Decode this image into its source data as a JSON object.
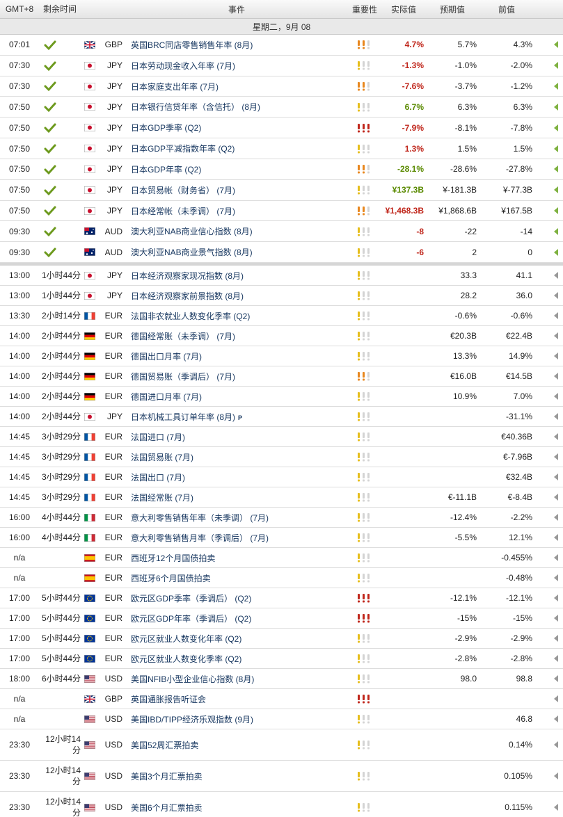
{
  "header": {
    "time": "GMT+8",
    "remaining": "剩余时间",
    "event": "事件",
    "importance": "重要性",
    "actual": "实际值",
    "forecast": "预期值",
    "previous": "前值"
  },
  "date": "星期二，9月 08",
  "released": [
    {
      "time": "07:01",
      "currency": "GBP",
      "flag": "GB",
      "event": "英国BRC同店零售销售年率 (8月)",
      "importance": 2,
      "actual": "4.7%",
      "actual_color": "#c0271c",
      "forecast": "5.7%",
      "previous": "4.3%"
    },
    {
      "time": "07:30",
      "currency": "JPY",
      "flag": "JP",
      "event": "日本劳动现金收入年率 (7月)",
      "importance": 1,
      "actual": "-1.3%",
      "actual_color": "#c0271c",
      "forecast": "-1.0%",
      "previous": "-2.0%"
    },
    {
      "time": "07:30",
      "currency": "JPY",
      "flag": "JP",
      "event": "日本家庭支出年率 (7月)",
      "importance": 2,
      "actual": "-7.6%",
      "actual_color": "#c0271c",
      "forecast": "-3.7%",
      "previous": "-1.2%"
    },
    {
      "time": "07:50",
      "currency": "JPY",
      "flag": "JP",
      "event": "日本银行信贷年率（含信托） (8月)",
      "importance": 1,
      "actual": "6.7%",
      "actual_color": "#5a8a00",
      "forecast": "6.3%",
      "previous": "6.3%"
    },
    {
      "time": "07:50",
      "currency": "JPY",
      "flag": "JP",
      "event": "日本GDP季率 (Q2)",
      "importance": 3,
      "actual": "-7.9%",
      "actual_color": "#c0271c",
      "forecast": "-8.1%",
      "previous": "-7.8%"
    },
    {
      "time": "07:50",
      "currency": "JPY",
      "flag": "JP",
      "event": "日本GDP平减指数年率 (Q2)",
      "importance": 1,
      "actual": "1.3%",
      "actual_color": "#c0271c",
      "forecast": "1.5%",
      "previous": "1.5%"
    },
    {
      "time": "07:50",
      "currency": "JPY",
      "flag": "JP",
      "event": "日本GDP年率 (Q2)",
      "importance": 2,
      "actual": "-28.1%",
      "actual_color": "#5a8a00",
      "forecast": "-28.6%",
      "previous": "-27.8%"
    },
    {
      "time": "07:50",
      "currency": "JPY",
      "flag": "JP",
      "event": "日本贸易帐（财务省） (7月)",
      "importance": 1,
      "actual": "¥137.3B",
      "actual_color": "#5a8a00",
      "forecast": "¥-181.3B",
      "previous": "¥-77.3B"
    },
    {
      "time": "07:50",
      "currency": "JPY",
      "flag": "JP",
      "event": "日本经常帐（未季调） (7月)",
      "importance": 2,
      "actual": "¥1,468.3B",
      "actual_color": "#c0271c",
      "forecast": "¥1,868.6B",
      "previous": "¥167.5B"
    },
    {
      "time": "09:30",
      "currency": "AUD",
      "flag": "AU",
      "event": "澳大利亚NAB商业信心指数 (8月)",
      "importance": 1,
      "actual": "-8",
      "actual_color": "#c0271c",
      "forecast": "-22",
      "previous": "-14"
    },
    {
      "time": "09:30",
      "currency": "AUD",
      "flag": "AU",
      "event": "澳大利亚NAB商业景气指数 (8月)",
      "importance": 1,
      "actual": "-6",
      "actual_color": "#c0271c",
      "forecast": "2",
      "previous": "0"
    }
  ],
  "upcoming": [
    {
      "time": "13:00",
      "remaining": "1小时44分",
      "currency": "JPY",
      "flag": "JP",
      "event": "日本经济观察家现况指数 (8月)",
      "importance": 1,
      "forecast": "33.3",
      "previous": "41.1"
    },
    {
      "time": "13:00",
      "remaining": "1小时44分",
      "currency": "JPY",
      "flag": "JP",
      "event": "日本经济观察家前景指数 (8月)",
      "importance": 1,
      "forecast": "28.2",
      "previous": "36.0"
    },
    {
      "time": "13:30",
      "remaining": "2小时14分",
      "currency": "EUR",
      "flag": "FR",
      "event": "法国非农就业人数变化季率 (Q2)",
      "importance": 1,
      "forecast": "-0.6%",
      "previous": "-0.6%"
    },
    {
      "time": "14:00",
      "remaining": "2小时44分",
      "currency": "EUR",
      "flag": "DE",
      "event": "德国经常账（未季调） (7月)",
      "importance": 1,
      "forecast": "€20.3B",
      "previous": "€22.4B"
    },
    {
      "time": "14:00",
      "remaining": "2小时44分",
      "currency": "EUR",
      "flag": "DE",
      "event": "德国出口月率 (7月)",
      "importance": 1,
      "forecast": "13.3%",
      "previous": "14.9%"
    },
    {
      "time": "14:00",
      "remaining": "2小时44分",
      "currency": "EUR",
      "flag": "DE",
      "event": "德国贸易账（季调后） (7月)",
      "importance": 2,
      "forecast": "€16.0B",
      "previous": "€14.5B"
    },
    {
      "time": "14:00",
      "remaining": "2小时44分",
      "currency": "EUR",
      "flag": "DE",
      "event": "德国进口月率 (7月)",
      "importance": 1,
      "forecast": "10.9%",
      "previous": "7.0%"
    },
    {
      "time": "14:00",
      "remaining": "2小时44分",
      "currency": "JPY",
      "flag": "JP",
      "event": "日本机械工具订单年率 (8月)",
      "event_note": "P",
      "importance": 1,
      "previous": "-31.1%"
    },
    {
      "time": "14:45",
      "remaining": "3小时29分",
      "currency": "EUR",
      "flag": "FR",
      "event": "法国进口 (7月)",
      "importance": 1,
      "previous": "€40.36B"
    },
    {
      "time": "14:45",
      "remaining": "3小时29分",
      "currency": "EUR",
      "flag": "FR",
      "event": "法国贸易账 (7月)",
      "importance": 1,
      "previous": "€-7.96B"
    },
    {
      "time": "14:45",
      "remaining": "3小时29分",
      "currency": "EUR",
      "flag": "FR",
      "event": "法国出口 (7月)",
      "importance": 1,
      "previous": "€32.4B"
    },
    {
      "time": "14:45",
      "remaining": "3小时29分",
      "currency": "EUR",
      "flag": "FR",
      "event": "法国经常账 (7月)",
      "importance": 1,
      "forecast": "€-11.1B",
      "previous": "€-8.4B"
    },
    {
      "time": "16:00",
      "remaining": "4小时44分",
      "currency": "EUR",
      "flag": "IT",
      "event": "意大利零售销售年率（未季调） (7月)",
      "importance": 1,
      "forecast": "-12.4%",
      "previous": "-2.2%"
    },
    {
      "time": "16:00",
      "remaining": "4小时44分",
      "currency": "EUR",
      "flag": "IT",
      "event": "意大利零售销售月率（季调后） (7月)",
      "importance": 1,
      "forecast": "-5.5%",
      "previous": "12.1%"
    },
    {
      "time": "n/a",
      "currency": "EUR",
      "flag": "ES",
      "event": "西班牙12个月国债拍卖",
      "importance": 1,
      "previous": "-0.455%"
    },
    {
      "time": "n/a",
      "currency": "EUR",
      "flag": "ES",
      "event": "西班牙6个月国债拍卖",
      "importance": 1,
      "previous": "-0.48%"
    },
    {
      "time": "17:00",
      "remaining": "5小时44分",
      "currency": "EUR",
      "flag": "EU",
      "event": "欧元区GDP季率（季调后） (Q2)",
      "importance": 3,
      "forecast": "-12.1%",
      "previous": "-12.1%"
    },
    {
      "time": "17:00",
      "remaining": "5小时44分",
      "currency": "EUR",
      "flag": "EU",
      "event": "欧元区GDP年率（季调后） (Q2)",
      "importance": 3,
      "forecast": "-15%",
      "previous": "-15%"
    },
    {
      "time": "17:00",
      "remaining": "5小时44分",
      "currency": "EUR",
      "flag": "EU",
      "event": "欧元区就业人数变化年率 (Q2)",
      "importance": 1,
      "forecast": "-2.9%",
      "previous": "-2.9%"
    },
    {
      "time": "17:00",
      "remaining": "5小时44分",
      "currency": "EUR",
      "flag": "EU",
      "event": "欧元区就业人数变化季率 (Q2)",
      "importance": 1,
      "forecast": "-2.8%",
      "previous": "-2.8%"
    },
    {
      "time": "18:00",
      "remaining": "6小时44分",
      "currency": "USD",
      "flag": "US",
      "event": "美国NFIB小型企业信心指数 (8月)",
      "importance": 1,
      "forecast": "98.0",
      "previous": "98.8"
    },
    {
      "time": "n/a",
      "currency": "GBP",
      "flag": "GB",
      "event": "英国通胀报告听证会",
      "importance": 3
    },
    {
      "time": "n/a",
      "currency": "USD",
      "flag": "US",
      "event": "美国IBD/TIPP经济乐观指数 (9月)",
      "importance": 1,
      "previous": "46.8"
    },
    {
      "time": "23:30",
      "remaining": "12小时14分",
      "currency": "USD",
      "flag": "US",
      "event": "美国52周汇票拍卖",
      "importance": 1,
      "previous": "0.14%"
    },
    {
      "time": "23:30",
      "remaining": "12小时14分",
      "currency": "USD",
      "flag": "US",
      "event": "美国3个月汇票拍卖",
      "importance": 1,
      "previous": "0.105%"
    },
    {
      "time": "23:30",
      "remaining": "12小时14分",
      "currency": "USD",
      "flag": "US",
      "event": "美国6个月汇票拍卖",
      "importance": 1,
      "previous": "0.115%"
    }
  ]
}
